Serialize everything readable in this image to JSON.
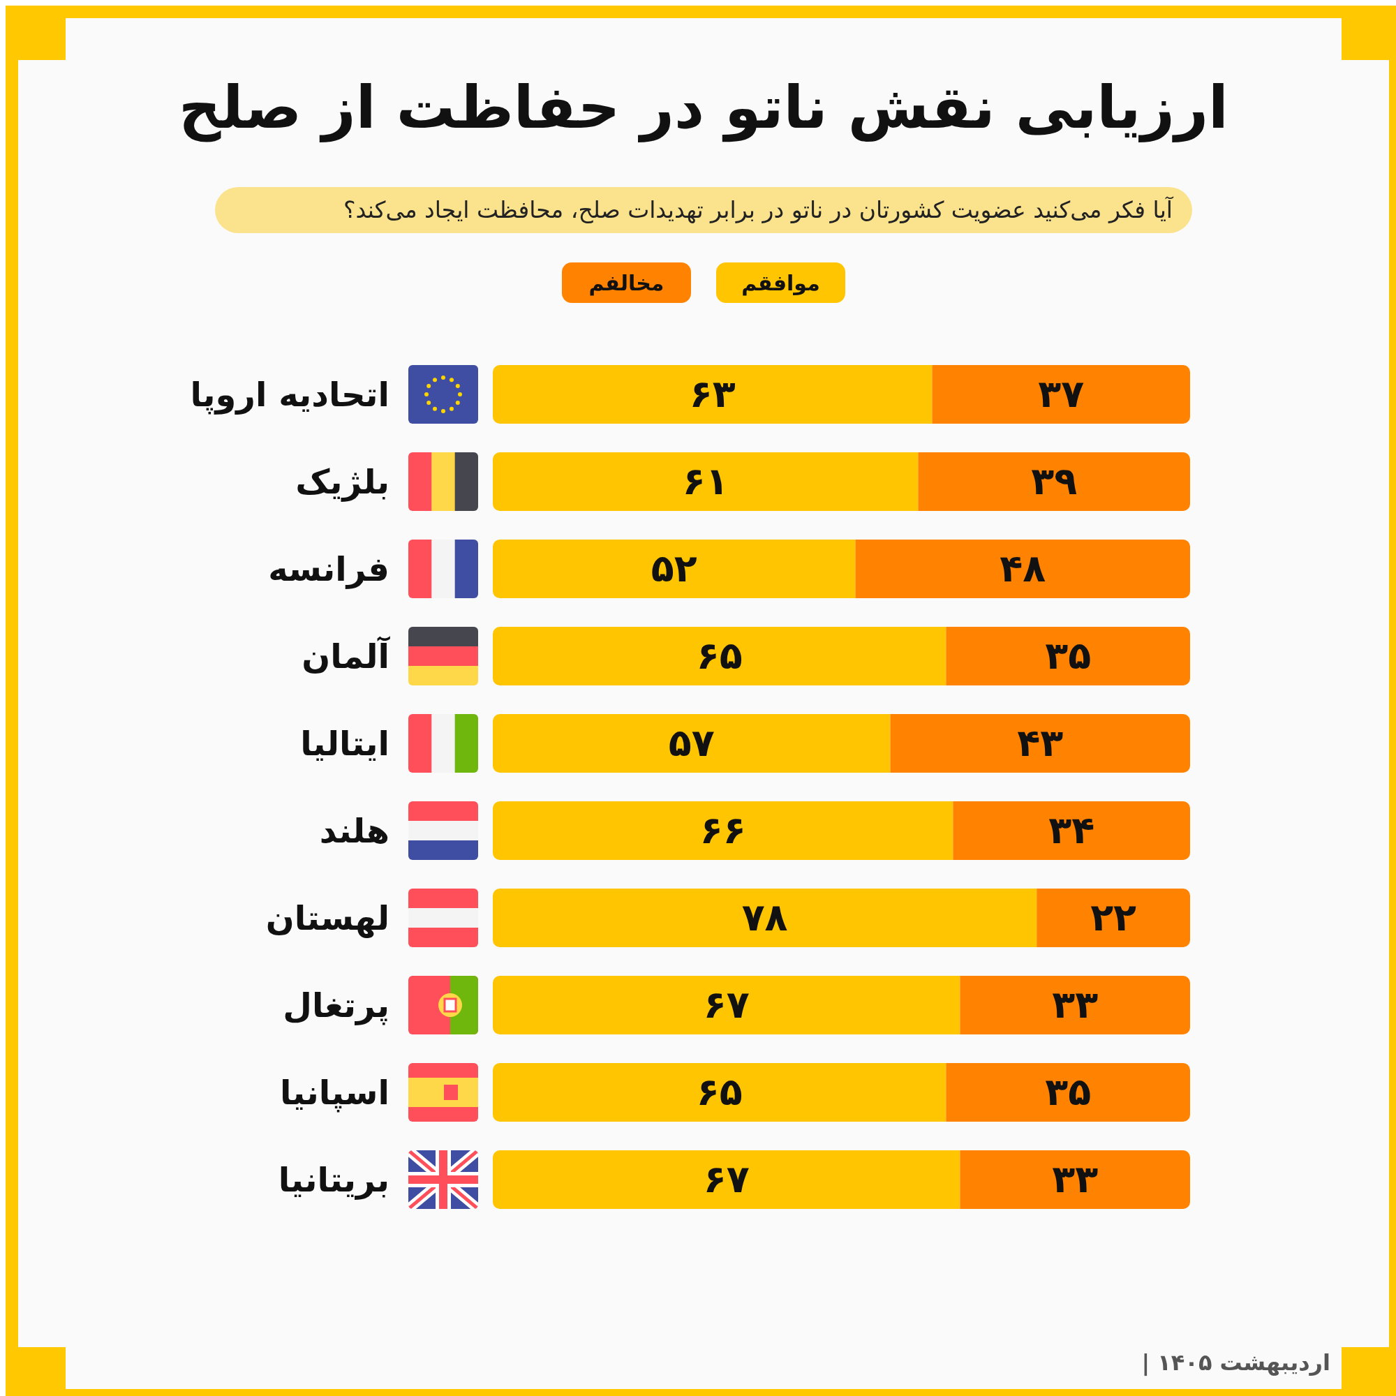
{
  "chart_data": {
    "type": "bar",
    "orientation": "horizontal",
    "stacked": true,
    "title": "ارزیابی نقش ناتو در حفاظت از صلح",
    "subtitle": "آیا فکر می‌کنید عضویت کشورتان در ناتو در برابر تهدیدات صلح، محافظت ایجاد می‌کند؟",
    "categories": [
      "اتحادیه اروپا",
      "بلژیک",
      "فرانسه",
      "آلمان",
      "ایتالیا",
      "هلند",
      "لهستان",
      "پرتغال",
      "اسپانیا",
      "بریتانیا"
    ],
    "series": [
      {
        "name": "موافقم",
        "color": "#ffc500",
        "values": [
          63,
          61,
          52,
          65,
          57,
          66,
          78,
          67,
          65,
          67
        ],
        "value_labels": [
          "۶۳",
          "۶۱",
          "۵۲",
          "۶۵",
          "۵۷",
          "۶۶",
          "۷۸",
          "۶۷",
          "۶۵",
          "۶۷"
        ]
      },
      {
        "name": "مخالفم",
        "color": "#ff8200",
        "values": [
          37,
          39,
          48,
          35,
          43,
          34,
          22,
          33,
          35,
          33
        ],
        "value_labels": [
          "۳۷",
          "۳۹",
          "۴۸",
          "۳۵",
          "۴۳",
          "۳۴",
          "۲۲",
          "۳۳",
          "۳۵",
          "۳۳"
        ]
      }
    ],
    "legend": "top",
    "tick_labels": "y",
    "annotations": [
      "| اردیبهشت ۱۴۰۵"
    ]
  }
}
